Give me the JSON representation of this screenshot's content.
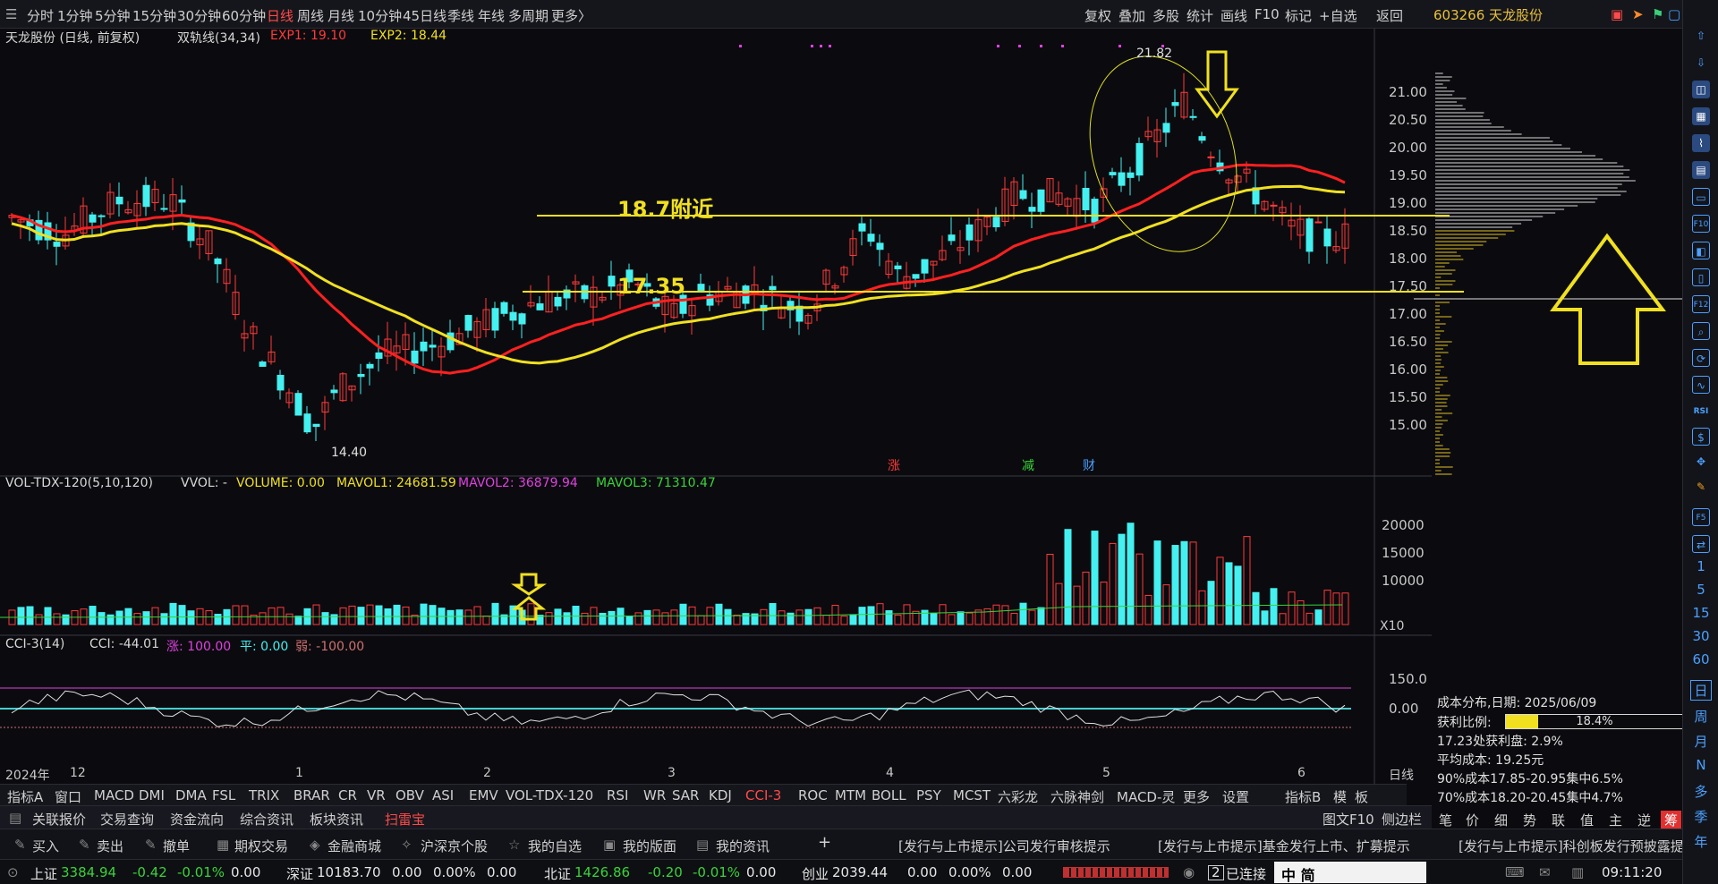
{
  "periods": [
    "分时",
    "1分钟",
    "5分钟",
    "15分钟",
    "30分钟",
    "60分钟",
    "日线",
    "周线",
    "月线",
    "10分钟",
    "45日线",
    "季线",
    "年线",
    "多周期",
    "更多〉"
  ],
  "active_period": "日线",
  "tools": [
    "复权",
    "叠加",
    "多股",
    "统计",
    "画线",
    "F10",
    "标记",
    "+自选",
    "返回"
  ],
  "stock": {
    "code_name": "603266 天龙股份"
  },
  "chart_header": {
    "name": "天龙股份 (日线, 前复权)",
    "indicator": "双轨线(34,34)",
    "exp1": "EXP1: 19.10",
    "exp2": "EXP2: 18.44"
  },
  "annotations": {
    "level_high": "18.7附近",
    "level_low": "17.35",
    "price_high": "21.82",
    "price_low": "14.40"
  },
  "event_marks": [
    "涨",
    "减",
    "财"
  ],
  "vol_header": {
    "name": "VOL-TDX-120(5,10,120)",
    "vvol": "VVOL: -",
    "volume": "VOLUME: 0.00",
    "mavol1": "MAVOL1: 24681.59",
    "mavol2": "MAVOL2: 36879.94",
    "mavol3": "MAVOL3: 71310.47",
    "unit": "X10"
  },
  "cci_header": {
    "name": "CCI-3(14)",
    "cci": "CCI: -44.01",
    "up": "涨: 100.00",
    "mid": "平: 0.00",
    "down": "弱: -100.00"
  },
  "x_axis": {
    "year": "2024年",
    "months": [
      "12",
      "1",
      "2",
      "3",
      "4",
      "5",
      "6"
    ],
    "period_label": "日线"
  },
  "price_ticks": [
    "21.00",
    "20.50",
    "20.00",
    "19.50",
    "19.00",
    "18.50",
    "18.00",
    "17.50",
    "17.00",
    "16.50",
    "16.00",
    "15.50",
    "15.00"
  ],
  "vol_ticks": [
    "20000",
    "15000",
    "10000"
  ],
  "cci_ticks": [
    "150.0",
    "0.00"
  ],
  "cost_panel": {
    "date_line": "成本分布,日期:  2025/06/09",
    "profit_label": "获利比例:",
    "profit_value": "18.4%",
    "profit_ratio": 0.184,
    "line1": "17.23处获利盘:  2.9%",
    "line2": "平均成本:  19.25元",
    "line3": "90%成本17.85-20.95集中6.5%",
    "line4": "70%成本18.20-20.45集中4.7%"
  },
  "indicators": [
    "指标A",
    "窗口",
    "MACD",
    "DMI",
    "DMA",
    "FSL",
    "TRIX",
    "BRAR",
    "CR",
    "VR",
    "OBV",
    "ASI",
    "EMV",
    "VOL-TDX-120",
    "RSI",
    "WR",
    "SAR",
    "KDJ",
    "CCI-3",
    "ROC",
    "MTM",
    "BOLL",
    "PSY",
    "MCST",
    "六彩龙",
    "六脉神剑",
    "MACD-灵",
    "更多",
    "设置"
  ],
  "active_indicator": "CCI-3",
  "indicator_right": [
    "指标B",
    "模",
    "板"
  ],
  "menus": [
    "关联报价",
    "交易查询",
    "资金流向",
    "综合资讯",
    "板块资讯",
    "扫雷宝"
  ],
  "menu_right": [
    "图文F10",
    "侧边栏"
  ],
  "panel_tabs": [
    "笔",
    "价",
    "细",
    "势",
    "联",
    "值",
    "主",
    "逆",
    "筹"
  ],
  "actions": [
    "买入",
    "卖出",
    "撤单",
    "期权交易",
    "金融商城",
    "沪深京个股",
    "我的自选",
    "我的版面",
    "我的资讯"
  ],
  "news": [
    "[发行与上市提示]公司发行审核提示",
    "[发行与上市提示]基金发行上市、扩募提示",
    "[发行与上市提示]科创板发行预披露提示"
  ],
  "status": {
    "sh_label": "上证",
    "sh_val": "3384.94",
    "sh_chg": "-0.42",
    "sh_pct": "-0.01%",
    "sh_amt": "0.00",
    "sz_label": "深证",
    "sz_val": "10183.70",
    "sz_chg": "0.00",
    "sz_pct": "0.00%",
    "sz_amt": "0.00",
    "bz_label": "北证",
    "bz_val": "1426.86",
    "bz_chg": "-0.20",
    "bz_pct": "-0.01%",
    "bz_amt": "0.00",
    "cy_label": "创业",
    "cy_val": "2039.44",
    "cy_chg": "0.00",
    "cy_pct": "0.00%",
    "cy_amt": "0.00",
    "conn": "已连接",
    "conn_num": "2",
    "ime": "中 简",
    "time": "09:11:20"
  },
  "right_col_text": [
    "1",
    "5",
    "15",
    "30",
    "60",
    "日",
    "周",
    "月",
    "N",
    "多",
    "季",
    "年"
  ],
  "colors": {
    "up": "#ff3a3a",
    "down": "#44f0f0",
    "ma1": "#ff2020",
    "ma2": "#f0e020",
    "accent": "#ff4a4a"
  }
}
